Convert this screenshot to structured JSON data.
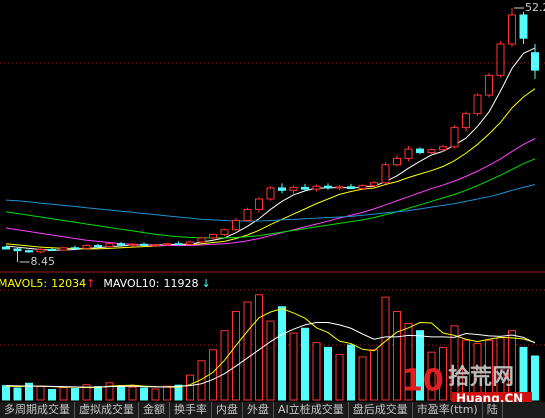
{
  "chart_data": {
    "type": "candlestick",
    "up_color": "#ff3232",
    "down_color": "#54fcfc",
    "ylim": [
      7.07,
      53.58
    ],
    "open": [
      11.0,
      10.7,
      10.4,
      10.2,
      10.6,
      10.5,
      10.9,
      10.8,
      11.3,
      11.1,
      11.6,
      11.4,
      11.5,
      11.3,
      11.4,
      11.6,
      11.5,
      11.9,
      12.6,
      13.2,
      14.0,
      15.6,
      17.5,
      19.3,
      21.2,
      20.8,
      21.3,
      21.0,
      21.5,
      21.2,
      21.4,
      21.1,
      21.6,
      22.1,
      25.2,
      26.3,
      27.9,
      27.3,
      27.8,
      28.3,
      31.6,
      34.0,
      37.2,
      40.6,
      46.0,
      51.0,
      44.5
    ],
    "high": [
      11.2,
      10.9,
      10.6,
      10.8,
      10.9,
      11.0,
      11.3,
      11.5,
      11.6,
      11.8,
      11.9,
      11.7,
      11.8,
      11.6,
      11.7,
      12.0,
      12.1,
      12.8,
      13.4,
      14.2,
      16.0,
      17.8,
      19.6,
      21.5,
      22.0,
      21.6,
      21.9,
      21.8,
      22.0,
      21.7,
      21.9,
      21.8,
      22.4,
      25.6,
      26.8,
      28.4,
      28.2,
      28.0,
      28.6,
      32.0,
      34.4,
      37.5,
      41.0,
      46.5,
      52.2,
      51.5,
      46.0
    ],
    "low": [
      10.6,
      8.45,
      10.0,
      10.0,
      10.3,
      10.4,
      10.7,
      10.7,
      11.0,
      11.0,
      11.2,
      11.1,
      11.2,
      11.0,
      11.2,
      11.4,
      11.3,
      11.7,
      12.3,
      13.0,
      13.8,
      15.4,
      17.0,
      19.0,
      20.3,
      20.2,
      20.7,
      20.6,
      20.9,
      20.8,
      21.0,
      20.9,
      21.3,
      21.9,
      24.9,
      25.8,
      27.0,
      26.9,
      27.4,
      28.0,
      31.0,
      33.6,
      36.8,
      40.2,
      45.5,
      46.0,
      40.0
    ],
    "close": [
      10.7,
      10.4,
      10.2,
      10.6,
      10.5,
      10.9,
      10.8,
      11.3,
      11.1,
      11.6,
      11.4,
      11.5,
      11.3,
      11.4,
      11.6,
      11.5,
      11.9,
      12.6,
      13.2,
      14.0,
      15.6,
      17.5,
      19.3,
      21.2,
      20.8,
      21.3,
      21.0,
      21.5,
      21.2,
      21.4,
      21.1,
      21.6,
      22.1,
      25.2,
      26.3,
      27.9,
      27.3,
      27.8,
      28.3,
      31.6,
      34.0,
      37.2,
      40.6,
      46.0,
      51.0,
      47.0,
      41.5
    ],
    "moving_averages": [
      {
        "color": "#ffffff",
        "values": [
          11.2,
          11.0,
          10.8,
          10.6,
          10.5,
          10.5,
          10.6,
          10.8,
          10.9,
          11.1,
          11.2,
          11.4,
          11.4,
          11.4,
          11.4,
          11.5,
          11.5,
          11.9,
          12.2,
          12.6,
          13.5,
          14.6,
          15.9,
          17.5,
          18.9,
          20.0,
          20.7,
          21.2,
          21.2,
          21.3,
          21.2,
          21.4,
          21.5,
          22.3,
          23.3,
          24.6,
          25.8,
          26.9,
          27.5,
          28.6,
          29.8,
          31.8,
          34.3,
          37.9,
          41.8,
          44.4,
          45.3
        ]
      },
      {
        "color": "#ffff00",
        "values": [
          11.6,
          11.4,
          11.2,
          11.0,
          10.9,
          10.8,
          10.8,
          10.7,
          10.7,
          10.8,
          10.9,
          11.0,
          11.1,
          11.2,
          11.3,
          11.3,
          11.4,
          11.6,
          11.8,
          12.0,
          12.5,
          13.1,
          13.9,
          14.9,
          15.8,
          16.7,
          17.6,
          18.5,
          19.3,
          20.1,
          20.6,
          21.0,
          21.2,
          21.8,
          22.3,
          23.0,
          23.6,
          24.2,
          24.9,
          25.9,
          27.2,
          28.7,
          30.5,
          32.5,
          35.0,
          36.9,
          38.3
        ]
      },
      {
        "color": "#ff40ff",
        "values": [
          14.3,
          14.0,
          13.7,
          13.4,
          13.1,
          12.8,
          12.5,
          12.2,
          12.0,
          11.8,
          11.6,
          11.5,
          11.4,
          11.3,
          11.3,
          11.3,
          11.3,
          11.4,
          11.5,
          11.6,
          11.8,
          12.1,
          12.5,
          13.0,
          13.5,
          14.0,
          14.5,
          15.0,
          15.5,
          16.0,
          16.5,
          17.0,
          17.6,
          18.3,
          19.0,
          19.7,
          20.4,
          21.1,
          21.7,
          22.4,
          23.2,
          24.1,
          25.1,
          26.2,
          27.5,
          28.7,
          29.7
        ]
      },
      {
        "color": "#00e000",
        "values": [
          17.1,
          16.8,
          16.5,
          16.2,
          15.9,
          15.6,
          15.3,
          15.0,
          14.7,
          14.4,
          14.1,
          13.8,
          13.5,
          13.2,
          13.0,
          12.8,
          12.7,
          12.6,
          12.6,
          12.6,
          12.7,
          12.8,
          13.0,
          13.3,
          13.6,
          13.9,
          14.2,
          14.5,
          14.8,
          15.1,
          15.4,
          15.7,
          16.1,
          16.6,
          17.1,
          17.7,
          18.3,
          18.9,
          19.5,
          20.1,
          20.8,
          21.6,
          22.5,
          23.4,
          24.4,
          25.4,
          26.2
        ]
      },
      {
        "color": "#2090d0",
        "values": [
          19.1,
          19.0,
          18.8,
          18.6,
          18.4,
          18.2,
          18.0,
          17.8,
          17.6,
          17.4,
          17.2,
          17.0,
          16.8,
          16.6,
          16.4,
          16.2,
          16.0,
          15.8,
          15.7,
          15.6,
          15.5,
          15.5,
          15.5,
          15.6,
          15.7,
          15.8,
          15.9,
          16.0,
          16.1,
          16.2,
          16.3,
          16.5,
          16.7,
          16.9,
          17.1,
          17.3,
          17.6,
          17.9,
          18.2,
          18.5,
          18.9,
          19.3,
          19.7,
          20.2,
          20.8,
          21.3,
          21.8
        ]
      }
    ],
    "volume": {
      "ylim": [
        0,
        23000
      ],
      "values": [
        3000,
        2500,
        3500,
        2800,
        2200,
        2600,
        2400,
        3200,
        2800,
        3600,
        3000,
        2700,
        2500,
        2300,
        2900,
        3100,
        5200,
        8200,
        10500,
        14500,
        18500,
        20500,
        22000,
        16500,
        19500,
        14000,
        15000,
        12000,
        11000,
        9500,
        11500,
        9000,
        10500,
        21500,
        18500,
        16000,
        14500,
        10000,
        11000,
        15500,
        12500,
        11800,
        12500,
        13000,
        14500,
        11000,
        9200
      ],
      "mavol5": {
        "label": "MAVOL5:",
        "color": "#ffff00",
        "trend": "↑",
        "trend_color": "#ff3232",
        "values": [
          2900,
          2800,
          2900,
          2900,
          2800,
          2700,
          2700,
          2600,
          2600,
          2900,
          3000,
          3100,
          2900,
          2800,
          2700,
          2700,
          3200,
          4300,
          5800,
          8300,
          11400,
          14400,
          17200,
          18400,
          19100,
          18200,
          17100,
          15100,
          14100,
          12300,
          11800,
          10600,
          10300,
          12300,
          14200,
          15100,
          16200,
          16100,
          14000,
          13500,
          12700,
          12200,
          12700,
          13100,
          13000,
          12760,
          12034
        ]
      },
      "mavol10": {
        "label": "MAVOL10:",
        "color": "#ffffff",
        "trend": "↓",
        "trend_color": "#54fcfc",
        "values": [
          3000,
          2950,
          2900,
          2900,
          2850,
          2800,
          2750,
          2700,
          2700,
          2800,
          2850,
          2900,
          2800,
          2750,
          2750,
          2850,
          3000,
          3400,
          4300,
          5500,
          7100,
          8800,
          10500,
          12200,
          13700,
          14800,
          15700,
          16200,
          16200,
          15700,
          15000,
          13800,
          12700,
          13200,
          13200,
          13500,
          13400,
          13200,
          13200,
          13100,
          13900,
          13700,
          13400,
          13300,
          13600,
          13100,
          11928
        ]
      }
    }
  },
  "tabs": [
    "多周期成交量",
    "虚拟成交量",
    "金额",
    "换手率",
    "内盘",
    "外盘",
    "AI立桩成交量",
    "盘后成交量",
    "市盈率(ttm)",
    "陆"
  ],
  "watermark": {
    "number": "10",
    "name": "拾荒网",
    "domain": "Huang.CN"
  }
}
